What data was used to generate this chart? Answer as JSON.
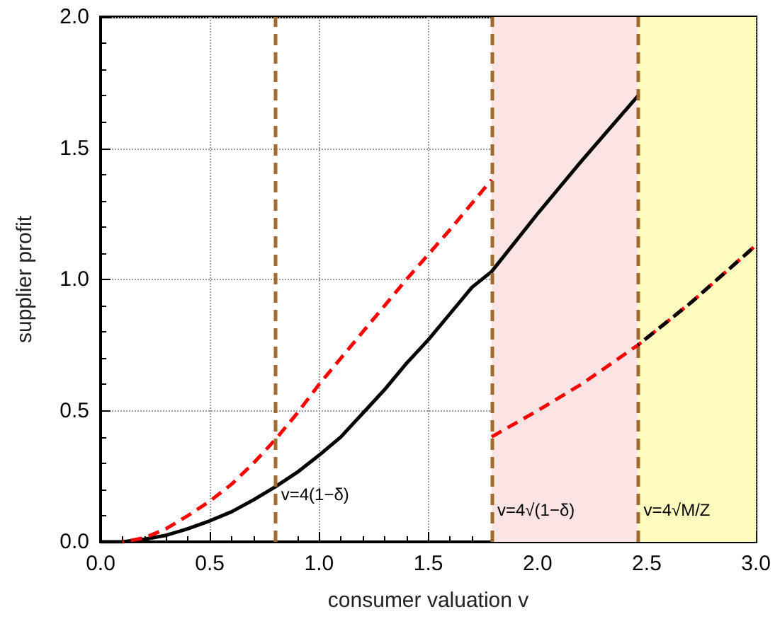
{
  "chart_data": {
    "type": "line",
    "xlabel": "consumer valuation v",
    "ylabel": "supplier profit",
    "xlim": [
      0,
      3
    ],
    "ylim": [
      0,
      2
    ],
    "xticks": [
      {
        "value": 0,
        "label": "0.0"
      },
      {
        "value": 0.5,
        "label": "0.5"
      },
      {
        "value": 1,
        "label": "1.0"
      },
      {
        "value": 1.5,
        "label": "1.5"
      },
      {
        "value": 2,
        "label": "2.0"
      },
      {
        "value": 2.5,
        "label": "2.5"
      },
      {
        "value": 3,
        "label": "3.0"
      }
    ],
    "yticks": [
      {
        "value": 0,
        "label": "0.0"
      },
      {
        "value": 0.5,
        "label": "0.5"
      },
      {
        "value": 1,
        "label": "1.0"
      },
      {
        "value": 1.5,
        "label": "1.5"
      },
      {
        "value": 2,
        "label": "2.0"
      }
    ],
    "grid": true,
    "marker": "none",
    "series": [
      {
        "color": "#000000",
        "line_style": "solid",
        "x": [
          0,
          0.1,
          0.2,
          0.3,
          0.4,
          0.5,
          0.6,
          0.7,
          0.8,
          0.9,
          1.0,
          1.1,
          1.2,
          1.3,
          1.4,
          1.5,
          1.6,
          1.7,
          1.79,
          2.0,
          2.2,
          2.46
        ],
        "values": [
          0,
          0,
          0.01,
          0.025,
          0.05,
          0.08,
          0.115,
          0.16,
          0.21,
          0.265,
          0.33,
          0.4,
          0.49,
          0.58,
          0.68,
          0.77,
          0.87,
          0.97,
          1.03,
          1.25,
          1.45,
          1.7
        ]
      },
      {
        "color": "#ff0000",
        "line_style": "dashed",
        "x": [
          0.1,
          0.2,
          0.3,
          0.4,
          0.5,
          0.6,
          0.7,
          0.8,
          0.9,
          1.0,
          1.2,
          1.4,
          1.6,
          1.79
        ],
        "values": [
          0,
          0.015,
          0.05,
          0.1,
          0.155,
          0.22,
          0.3,
          0.39,
          0.49,
          0.6,
          0.8,
          1.0,
          1.19,
          1.38
        ]
      },
      {
        "color": "#ff0000",
        "line_style": "dashed",
        "x": [
          1.79,
          2.0,
          2.2,
          2.46,
          2.7,
          3.0
        ],
        "values": [
          0.4,
          0.5,
          0.6,
          0.75,
          0.91,
          1.13
        ]
      },
      {
        "color": "#000000",
        "line_style": "dashed",
        "x": [
          2.46,
          2.7,
          3.0
        ],
        "values": [
          0.75,
          0.91,
          1.13
        ]
      }
    ],
    "ref_lines": [
      {
        "axis": "x",
        "value": 0.8,
        "color": "#a0692e",
        "line_style": "dashed"
      },
      {
        "axis": "x",
        "value": 1.79,
        "color": "#a0692e",
        "line_style": "dashed"
      },
      {
        "axis": "x",
        "value": 2.46,
        "color": "#a0692e",
        "line_style": "dashed"
      }
    ],
    "bands": [
      {
        "axis": "x",
        "from": 1.79,
        "to": 2.46,
        "color": "#fde4e4"
      },
      {
        "axis": "x",
        "from": 2.46,
        "to": 3,
        "color": "#fffbbf"
      }
    ],
    "annotations": [
      {
        "text": "v=4(1−δ)",
        "x": 0.8,
        "y": 0.18
      },
      {
        "text": "v=4√(1−δ)",
        "x": 1.79,
        "y": 0.12
      },
      {
        "text": "v=4√M/Z",
        "x": 2.46,
        "y": 0.12
      }
    ]
  }
}
